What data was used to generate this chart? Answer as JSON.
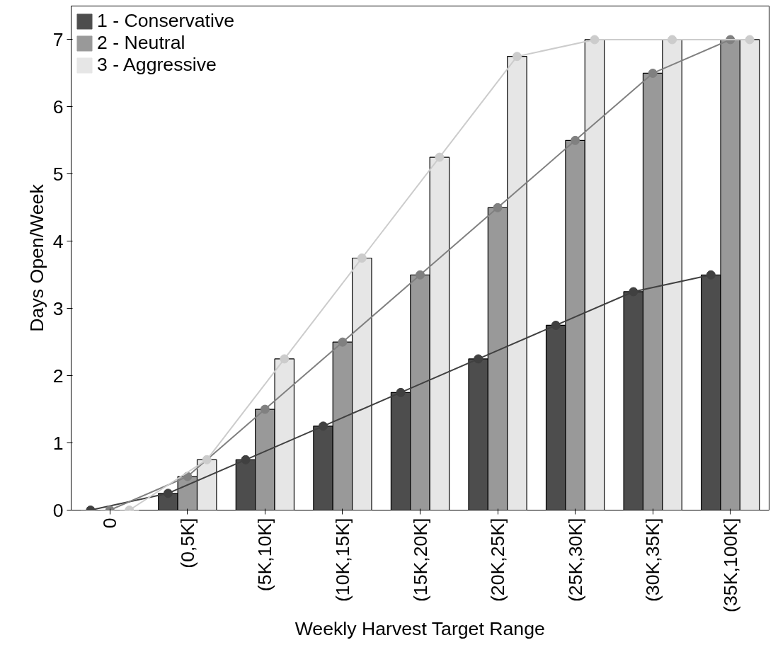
{
  "chart_data": {
    "type": "bar",
    "xlabel": "Weekly Harvest Target Range",
    "ylabel": "Days Open/Week",
    "categories": [
      "0",
      "(0,5K]",
      "(5K,10K]",
      "(10K,15K]",
      "(15K,20K]",
      "(20K,25K]",
      "(25K,30K]",
      "(30K,35K]",
      "(35K,100K]"
    ],
    "series": [
      {
        "name": "1 - Conservative",
        "color": "#4d4d4d",
        "values": [
          0,
          0.25,
          0.75,
          1.25,
          1.75,
          2.25,
          2.75,
          3.25,
          3.5
        ]
      },
      {
        "name": "2 - Neutral",
        "color": "#999999",
        "values": [
          0,
          0.5,
          1.5,
          2.5,
          3.5,
          4.5,
          5.5,
          6.5,
          7
        ]
      },
      {
        "name": "3 - Aggressive",
        "color": "#e6e6e6",
        "values": [
          0,
          0.75,
          2.25,
          3.75,
          5.25,
          6.75,
          7,
          7,
          7
        ]
      },
      {
        "type": "line",
        "color": "#404040",
        "marker": "circle",
        "values": [
          0,
          0.25,
          0.75,
          1.25,
          1.75,
          2.25,
          2.75,
          3.25,
          3.5
        ]
      },
      {
        "type": "line",
        "color": "#808080",
        "marker": "circle",
        "values": [
          0,
          0.5,
          1.5,
          2.5,
          3.5,
          4.5,
          5.5,
          6.5,
          7
        ]
      },
      {
        "type": "line",
        "color": "#cccccc",
        "marker": "circle",
        "values": [
          0,
          0.75,
          2.25,
          3.75,
          5.25,
          6.75,
          7,
          7,
          7
        ]
      }
    ],
    "ylim": [
      0,
      7.5
    ],
    "yticks": [
      0,
      1,
      2,
      3,
      4,
      5,
      6,
      7
    ],
    "grid": false,
    "legend": "top left"
  }
}
